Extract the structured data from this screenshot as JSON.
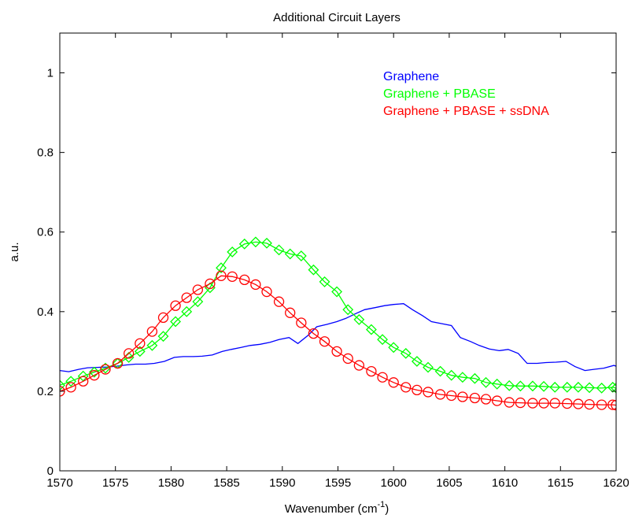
{
  "chart_data": {
    "type": "line",
    "title": "Additional Circuit Layers",
    "xlabel": "Wavenumber (cm",
    "xlabel_sup": "-1",
    "xlabel_end": ")",
    "ylabel": "a.u.",
    "xlim": [
      1570,
      1620
    ],
    "ylim": [
      0,
      1.1
    ],
    "xticks": [
      1570,
      1575,
      1580,
      1585,
      1590,
      1595,
      1600,
      1605,
      1610,
      1615,
      1620
    ],
    "yticks": [
      0,
      0.2,
      0.4,
      0.6,
      0.8,
      1
    ],
    "ytick_labels": [
      "0",
      "0.2",
      "0.4",
      "0.6",
      "0.8",
      "1"
    ],
    "grid": false,
    "legend_placement": "top-right",
    "series": [
      {
        "name": "Graphene",
        "color": "#0000ff",
        "marker": "none",
        "x": [
          1570.0,
          1570.8,
          1571.7,
          1572.5,
          1573.4,
          1574.3,
          1575.1,
          1576.0,
          1576.8,
          1577.7,
          1578.5,
          1579.4,
          1580.3,
          1581.1,
          1582.0,
          1582.8,
          1583.7,
          1584.6,
          1585.4,
          1586.3,
          1587.1,
          1588.0,
          1588.9,
          1589.7,
          1590.6,
          1591.4,
          1592.3,
          1593.1,
          1594.0,
          1594.9,
          1595.7,
          1596.6,
          1597.4,
          1598.3,
          1599.2,
          1600.0,
          1600.9,
          1601.7,
          1602.6,
          1603.4,
          1604.3,
          1605.2,
          1606.0,
          1606.9,
          1607.7,
          1608.6,
          1609.5,
          1610.3,
          1611.2,
          1612.0,
          1612.9,
          1613.7,
          1614.6,
          1615.5,
          1616.3,
          1617.2,
          1618.0,
          1618.9,
          1619.8,
          1620.0
        ],
        "values": [
          0.252,
          0.249,
          0.255,
          0.259,
          0.26,
          0.261,
          0.263,
          0.266,
          0.268,
          0.268,
          0.27,
          0.275,
          0.285,
          0.287,
          0.287,
          0.288,
          0.291,
          0.3,
          0.305,
          0.31,
          0.315,
          0.318,
          0.323,
          0.33,
          0.335,
          0.32,
          0.34,
          0.362,
          0.368,
          0.375,
          0.383,
          0.395,
          0.405,
          0.41,
          0.415,
          0.418,
          0.42,
          0.405,
          0.39,
          0.375,
          0.37,
          0.365,
          0.335,
          0.325,
          0.315,
          0.306,
          0.302,
          0.305,
          0.295,
          0.27,
          0.27,
          0.272,
          0.273,
          0.275,
          0.262,
          0.252,
          0.255,
          0.258,
          0.265,
          0.263
        ]
      },
      {
        "name": "Graphene + PBASE",
        "color": "#00ff00",
        "marker": "diamond",
        "x": [
          1570.0,
          1571.0,
          1572.1,
          1573.1,
          1574.1,
          1575.2,
          1576.2,
          1577.2,
          1578.3,
          1579.3,
          1580.4,
          1581.4,
          1582.4,
          1583.5,
          1584.5,
          1585.5,
          1586.6,
          1587.6,
          1588.6,
          1589.7,
          1590.7,
          1591.7,
          1592.8,
          1593.8,
          1594.9,
          1595.9,
          1596.9,
          1598.0,
          1599.0,
          1600.0,
          1601.1,
          1602.1,
          1603.1,
          1604.2,
          1605.2,
          1606.2,
          1607.3,
          1608.3,
          1609.3,
          1610.4,
          1611.4,
          1612.5,
          1613.5,
          1614.5,
          1615.6,
          1616.6,
          1617.6,
          1618.7,
          1619.7,
          1620.0
        ],
        "values": [
          0.215,
          0.225,
          0.238,
          0.248,
          0.258,
          0.27,
          0.285,
          0.3,
          0.315,
          0.338,
          0.375,
          0.4,
          0.425,
          0.46,
          0.51,
          0.55,
          0.57,
          0.575,
          0.572,
          0.555,
          0.545,
          0.54,
          0.505,
          0.475,
          0.45,
          0.405,
          0.38,
          0.355,
          0.33,
          0.31,
          0.295,
          0.275,
          0.26,
          0.25,
          0.24,
          0.235,
          0.232,
          0.222,
          0.218,
          0.214,
          0.213,
          0.213,
          0.212,
          0.21,
          0.21,
          0.21,
          0.209,
          0.208,
          0.21,
          0.208
        ]
      },
      {
        "name": "Graphene + PBASE + ssDNA",
        "color": "#ff0000",
        "marker": "circle",
        "x": [
          1570.0,
          1571.0,
          1572.1,
          1573.1,
          1574.1,
          1575.2,
          1576.2,
          1577.2,
          1578.3,
          1579.3,
          1580.4,
          1581.4,
          1582.4,
          1583.5,
          1584.5,
          1585.5,
          1586.6,
          1587.6,
          1588.6,
          1589.7,
          1590.7,
          1591.7,
          1592.8,
          1593.8,
          1594.9,
          1595.9,
          1596.9,
          1598.0,
          1599.0,
          1600.0,
          1601.1,
          1602.1,
          1603.1,
          1604.2,
          1605.2,
          1606.2,
          1607.3,
          1608.3,
          1609.3,
          1610.4,
          1611.4,
          1612.5,
          1613.5,
          1614.5,
          1615.6,
          1616.6,
          1617.6,
          1618.7,
          1619.7,
          1620.0
        ],
        "values": [
          0.2,
          0.21,
          0.225,
          0.24,
          0.255,
          0.27,
          0.295,
          0.32,
          0.35,
          0.385,
          0.415,
          0.435,
          0.455,
          0.47,
          0.49,
          0.488,
          0.48,
          0.468,
          0.45,
          0.425,
          0.397,
          0.372,
          0.345,
          0.325,
          0.3,
          0.282,
          0.265,
          0.25,
          0.235,
          0.222,
          0.21,
          0.203,
          0.198,
          0.192,
          0.189,
          0.186,
          0.183,
          0.18,
          0.176,
          0.172,
          0.171,
          0.17,
          0.17,
          0.17,
          0.169,
          0.168,
          0.167,
          0.166,
          0.166,
          0.165
        ]
      }
    ]
  }
}
